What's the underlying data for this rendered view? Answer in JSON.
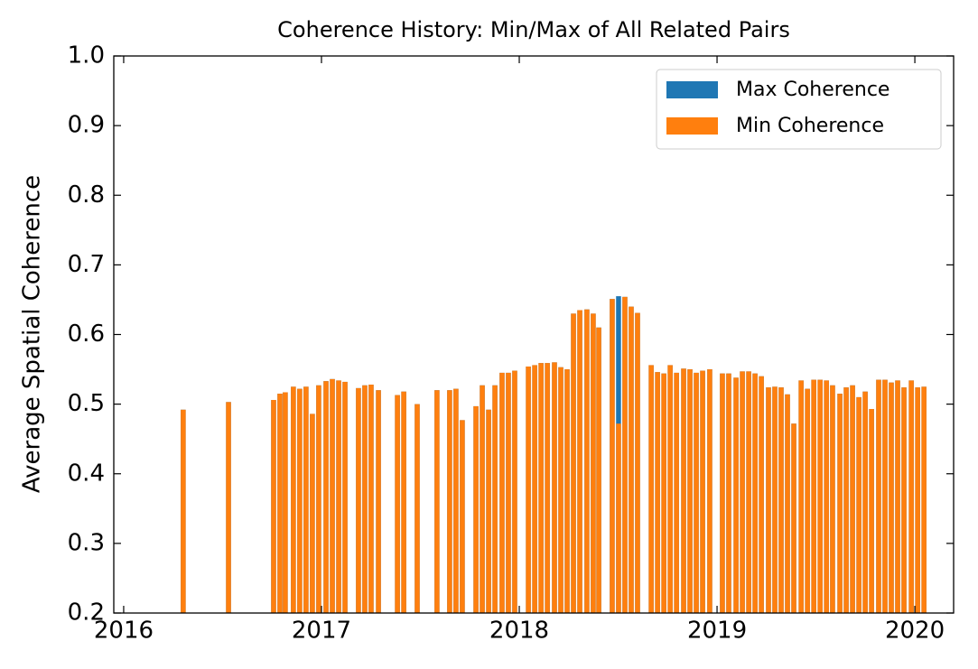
{
  "chart_data": {
    "type": "bar",
    "title": "Coherence History: Min/Max of All Related Pairs",
    "y_label": "Average Spatial Coherence",
    "x": [
      2016.301,
      2016.53,
      2016.758,
      2016.79,
      2016.817,
      2016.858,
      2016.89,
      2016.922,
      2016.954,
      2016.986,
      2017.023,
      2017.055,
      2017.087,
      2017.119,
      2017.187,
      2017.219,
      2017.251,
      2017.288,
      2017.384,
      2017.416,
      2017.484,
      2017.584,
      2017.648,
      2017.68,
      2017.712,
      2017.781,
      2017.813,
      2017.845,
      2017.877,
      2017.913,
      2017.945,
      2017.977,
      2018.046,
      2018.078,
      2018.11,
      2018.142,
      2018.178,
      2018.21,
      2018.242,
      2018.274,
      2018.306,
      2018.342,
      2018.374,
      2018.402,
      2018.47,
      2018.502,
      2018.534,
      2018.566,
      2018.598,
      2018.667,
      2018.699,
      2018.731,
      2018.763,
      2018.795,
      2018.831,
      2018.863,
      2018.895,
      2018.927,
      2018.963,
      2019.027,
      2019.059,
      2019.096,
      2019.128,
      2019.16,
      2019.192,
      2019.224,
      2019.26,
      2019.292,
      2019.324,
      2019.356,
      2019.388,
      2019.425,
      2019.457,
      2019.489,
      2019.521,
      2019.553,
      2019.584,
      2019.621,
      2019.653,
      2019.685,
      2019.717,
      2019.749,
      2019.781,
      2019.817,
      2019.849,
      2019.881,
      2019.913,
      2019.945,
      2019.982,
      2020.014,
      2020.046
    ],
    "series": [
      {
        "name": "Max Coherence",
        "color": "#1f77b4",
        "values": [
          0.492,
          0.503,
          0.506,
          0.515,
          0.517,
          0.525,
          0.522,
          0.525,
          0.486,
          0.527,
          0.533,
          0.536,
          0.534,
          0.532,
          0.523,
          0.527,
          0.528,
          0.52,
          0.513,
          0.518,
          0.5,
          0.52,
          0.52,
          0.522,
          0.477,
          0.497,
          0.527,
          0.492,
          0.527,
          0.545,
          0.545,
          0.548,
          0.554,
          0.556,
          0.559,
          0.559,
          0.56,
          0.553,
          0.55,
          0.63,
          0.635,
          0.636,
          0.63,
          0.61,
          0.651,
          0.655,
          0.654,
          0.64,
          0.631,
          0.556,
          0.546,
          0.544,
          0.556,
          0.545,
          0.551,
          0.55,
          0.545,
          0.548,
          0.55,
          0.544,
          0.544,
          0.538,
          0.547,
          0.547,
          0.544,
          0.54,
          0.524,
          0.525,
          0.524,
          0.514,
          0.472,
          0.534,
          0.522,
          0.535,
          0.535,
          0.534,
          0.527,
          0.515,
          0.524,
          0.527,
          0.51,
          0.518,
          0.493,
          0.535,
          0.535,
          0.531,
          0.534,
          0.524,
          0.534,
          0.524,
          0.525
        ]
      },
      {
        "name": "Min Coherence",
        "color": "#ff7f0e",
        "values": [
          0.492,
          0.503,
          0.506,
          0.515,
          0.517,
          0.525,
          0.522,
          0.525,
          0.486,
          0.527,
          0.533,
          0.536,
          0.534,
          0.532,
          0.523,
          0.527,
          0.528,
          0.52,
          0.513,
          0.518,
          0.5,
          0.52,
          0.52,
          0.522,
          0.477,
          0.497,
          0.527,
          0.492,
          0.527,
          0.545,
          0.545,
          0.548,
          0.554,
          0.556,
          0.559,
          0.559,
          0.56,
          0.553,
          0.55,
          0.63,
          0.635,
          0.636,
          0.63,
          0.61,
          0.651,
          0.472,
          0.654,
          0.64,
          0.631,
          0.556,
          0.546,
          0.544,
          0.556,
          0.545,
          0.551,
          0.55,
          0.545,
          0.548,
          0.55,
          0.544,
          0.544,
          0.538,
          0.547,
          0.547,
          0.544,
          0.54,
          0.524,
          0.525,
          0.524,
          0.514,
          0.472,
          0.534,
          0.522,
          0.535,
          0.535,
          0.534,
          0.527,
          0.515,
          0.524,
          0.527,
          0.51,
          0.518,
          0.493,
          0.535,
          0.535,
          0.531,
          0.534,
          0.524,
          0.534,
          0.524,
          0.525
        ]
      }
    ],
    "xlim": [
      2015.95,
      2020.196
    ],
    "xticks": [
      2016,
      2017,
      2018,
      2019,
      2020
    ],
    "ylim": [
      0.2,
      1.0
    ],
    "yticks": [
      0.2,
      0.3,
      0.4,
      0.5,
      0.6,
      0.7,
      0.8,
      0.9,
      {
        "value": 1.0,
        "label": "1.0"
      }
    ],
    "legend": "upper right",
    "grid": false
  }
}
